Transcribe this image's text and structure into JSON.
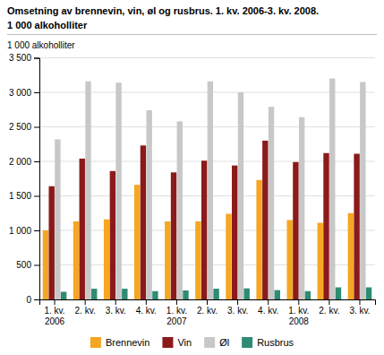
{
  "chart_data": {
    "type": "bar",
    "title": "Omsetning av brennevin, vin, øl og rusbrus. 1. kv. 2006-3. kv. 2008.",
    "subtitle": "1 000 alkoholliter",
    "ylabel": "1 000 alkoholliter",
    "categories": [
      "1. kv.\n2006",
      "2. kv.",
      "3. kv.",
      "4. kv.",
      "1. kv.\n2007",
      "2. kv.",
      "3. kv.",
      "4. kv.",
      "1. kv.\n2008",
      "2. kv.",
      "3. kv."
    ],
    "series": [
      {
        "name": "Brennevin",
        "color": "#F5A623",
        "values": [
          1000,
          1130,
          1160,
          1660,
          1130,
          1130,
          1240,
          1730,
          1150,
          1110,
          1250
        ]
      },
      {
        "name": "Vin",
        "color": "#8B1A1A",
        "values": [
          1640,
          2040,
          1860,
          2230,
          1840,
          2010,
          1940,
          2300,
          1990,
          2120,
          2110
        ]
      },
      {
        "name": "Øl",
        "color": "#C8C8C8",
        "values": [
          2320,
          3160,
          3140,
          2740,
          2580,
          3160,
          3000,
          2790,
          2640,
          3200,
          3150
        ]
      },
      {
        "name": "Rusbrus",
        "color": "#2E8B74",
        "values": [
          110,
          155,
          155,
          120,
          130,
          155,
          160,
          135,
          120,
          175,
          175
        ]
      }
    ],
    "ylim": [
      0,
      3500
    ],
    "yticks": [
      0,
      500,
      {
        "value": 1000,
        "label": "1 000"
      },
      {
        "value": 1500,
        "label": "1 500"
      },
      {
        "value": 2000,
        "label": "2 000"
      },
      {
        "value": 2500,
        "label": "2 500"
      },
      {
        "value": 3000,
        "label": "3 000"
      },
      {
        "value": 3500,
        "label": "3 500"
      }
    ],
    "grid": true,
    "legend": "bottom"
  }
}
